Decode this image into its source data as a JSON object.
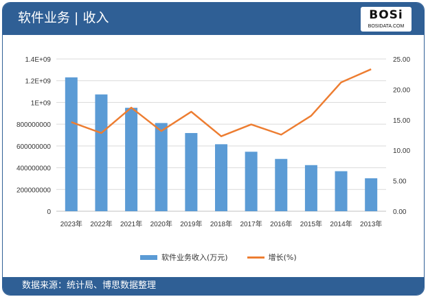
{
  "header": {
    "title": "软件业务 | 收入",
    "logo_text": "BOSi",
    "logo_sub": "BOSIDATA.COM"
  },
  "footer": {
    "source": "数据来源：统计局、博思数据整理"
  },
  "colors": {
    "bar": "#5b9bd5",
    "line": "#ed7d31",
    "header": "#2f5f95"
  },
  "chart_data": {
    "type": "bar+line",
    "categories": [
      "2023年",
      "2022年",
      "2021年",
      "2020年",
      "2019年",
      "2018年",
      "2017年",
      "2016年",
      "2015年",
      "2014年",
      "2013年"
    ],
    "series": [
      {
        "name": "软件业务收入(万元)",
        "type": "bar",
        "axis": "left",
        "values": [
          1231000000,
          1074000000,
          951000000,
          811000000,
          719000000,
          616000000,
          547000000,
          481000000,
          424000000,
          368000000,
          303000000
        ]
      },
      {
        "name": "增长(%)",
        "type": "line",
        "axis": "right",
        "values": [
          14.63,
          12.84,
          17.01,
          13.17,
          16.34,
          12.31,
          14.25,
          12.57,
          15.67,
          21.16,
          23.32
        ]
      }
    ],
    "ylim": [
      0,
      1400000000
    ],
    "yticks": [
      "0",
      "200000000",
      "400000000",
      "600000000",
      "800000000",
      "1E+09",
      "1.2E+09",
      "1.4E+09"
    ],
    "y2lim": [
      0,
      25
    ],
    "y2ticks": [
      "0.00",
      "5.00",
      "10.00",
      "15.00",
      "20.00",
      "25.00"
    ],
    "grid": true,
    "legend": "bottom"
  }
}
